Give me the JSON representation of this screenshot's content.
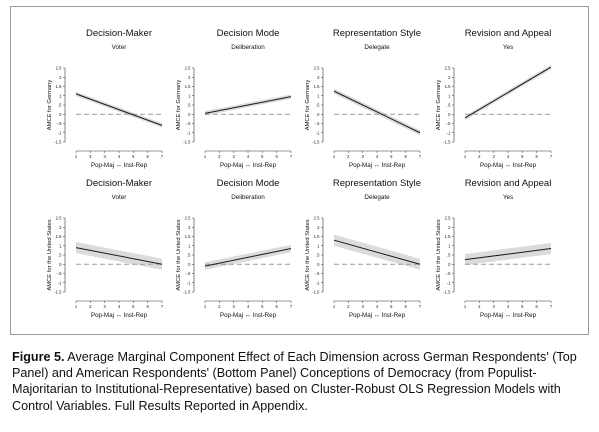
{
  "figure": {
    "caption_label": "Figure 5.",
    "caption_text": " Average Marginal Component Effect of Each Dimension across German Respondents' (Top Panel) and American Respondents' (Bottom Panel) Conceptions of Democracy (from Populist-Majoritarian to Institutional-Representative) based on Cluster-Robust OLS Regression Models with Control Variables. Full Results Reported in Appendix."
  },
  "colors": {
    "line": "#1a1a1a",
    "band": "#cfcfcf",
    "zero": "#9a9a9a",
    "frame": "#9a9a9a"
  },
  "chart_data": [
    {
      "type": "line",
      "title": "Decision-Maker",
      "subtitle": "Voter",
      "xlabel": "Pop-Maj ↔ Inst-Rep",
      "ylabel": "AMCE for Germany",
      "x": [
        1,
        7
      ],
      "y": [
        1.1,
        -0.6
      ],
      "ci_halfwidth": [
        0.12,
        0.12
      ],
      "xlim": [
        1,
        7
      ],
      "ylim": [
        -1.5,
        2.5
      ],
      "xticks": [
        "1",
        "2",
        "3",
        "4",
        "5",
        "6",
        "7"
      ],
      "yticks": [
        "2.5",
        "2",
        "1.5",
        "1",
        ".5",
        "0",
        "-.5",
        "-1",
        "-1.5"
      ],
      "reference_line": 0
    },
    {
      "type": "line",
      "title": "Decision Mode",
      "subtitle": "Deliberation",
      "xlabel": "Pop-Maj ↔ Inst-Rep",
      "ylabel": "AMCE for Germany",
      "x": [
        1,
        7
      ],
      "y": [
        0.05,
        0.95
      ],
      "ci_halfwidth": [
        0.12,
        0.12
      ],
      "xlim": [
        1,
        7
      ],
      "ylim": [
        -1.5,
        2.5
      ],
      "xticks": [
        "1",
        "2",
        "3",
        "4",
        "5",
        "6",
        "7"
      ],
      "yticks": [
        "2.5",
        "2",
        "1.5",
        "1",
        ".5",
        "0",
        "-.5",
        "-1",
        "-1.5"
      ],
      "reference_line": 0
    },
    {
      "type": "line",
      "title": "Representation Style",
      "subtitle": "Delegate",
      "xlabel": "Pop-Maj ↔ Inst-Rep",
      "ylabel": "AMCE for Germany",
      "x": [
        1,
        7
      ],
      "y": [
        1.25,
        -1.0
      ],
      "ci_halfwidth": [
        0.14,
        0.14
      ],
      "xlim": [
        1,
        7
      ],
      "ylim": [
        -1.5,
        2.5
      ],
      "xticks": [
        "1",
        "2",
        "3",
        "4",
        "5",
        "6",
        "7"
      ],
      "yticks": [
        "2.5",
        "2",
        "1.5",
        "1",
        ".5",
        "0",
        "-.5",
        "-1",
        "-1.5"
      ],
      "reference_line": 0
    },
    {
      "type": "line",
      "title": "Revision and Appeal",
      "subtitle": "Yes",
      "xlabel": "Pop-Maj ↔ Inst-Rep",
      "ylabel": "AMCE for Germany",
      "x": [
        1,
        7
      ],
      "y": [
        -0.2,
        2.55
      ],
      "ci_halfwidth": [
        0.12,
        0.12
      ],
      "xlim": [
        1,
        7
      ],
      "ylim": [
        -1.5,
        2.5
      ],
      "xticks": [
        "1",
        "2",
        "3",
        "4",
        "5",
        "6",
        "7"
      ],
      "yticks": [
        "2.5",
        "2",
        "1.5",
        "1",
        ".5",
        "0",
        "-.5",
        "-1",
        "-1.5"
      ],
      "reference_line": 0
    },
    {
      "type": "line",
      "title": "Decision-Maker",
      "subtitle": "Voter",
      "xlabel": "Pop-Maj ↔ Inst-Rep",
      "ylabel": "AMCE for the United States",
      "x": [
        1,
        7
      ],
      "y": [
        0.9,
        0.0
      ],
      "ci_halfwidth": [
        0.3,
        0.3
      ],
      "xlim": [
        1,
        7
      ],
      "ylim": [
        -1.5,
        2.5
      ],
      "xticks": [
        "1",
        "2",
        "3",
        "4",
        "5",
        "6",
        "7"
      ],
      "yticks": [
        "2.5",
        "2",
        "1.5",
        "1",
        ".5",
        "0",
        "-.5",
        "-1",
        "-1.5"
      ],
      "reference_line": 0
    },
    {
      "type": "line",
      "title": "Decision Mode",
      "subtitle": "Deliberation",
      "xlabel": "Pop-Maj ↔ Inst-Rep",
      "ylabel": "AMCE for the United States",
      "x": [
        1,
        7
      ],
      "y": [
        -0.1,
        0.85
      ],
      "ci_halfwidth": [
        0.2,
        0.2
      ],
      "xlim": [
        1,
        7
      ],
      "ylim": [
        -1.5,
        2.5
      ],
      "xticks": [
        "1",
        "2",
        "3",
        "4",
        "5",
        "6",
        "7"
      ],
      "yticks": [
        "2.5",
        "2",
        "1.5",
        "1",
        ".5",
        "0",
        "-.5",
        "-1",
        "-1.5"
      ],
      "reference_line": 0
    },
    {
      "type": "line",
      "title": "Representation Style",
      "subtitle": "Delegate",
      "xlabel": "Pop-Maj ↔ Inst-Rep",
      "ylabel": "AMCE for the United States",
      "x": [
        1,
        7
      ],
      "y": [
        1.3,
        0.0
      ],
      "ci_halfwidth": [
        0.3,
        0.3
      ],
      "xlim": [
        1,
        7
      ],
      "ylim": [
        -1.5,
        2.5
      ],
      "xticks": [
        "1",
        "2",
        "3",
        "4",
        "5",
        "6",
        "7"
      ],
      "yticks": [
        "2.5",
        "2",
        "1.5",
        "1",
        ".5",
        "0",
        "-.5",
        "-1",
        "-1.5"
      ],
      "reference_line": 0
    },
    {
      "type": "line",
      "title": "Revision and Appeal",
      "subtitle": "Yes",
      "xlabel": "Pop-Maj ↔ Inst-Rep",
      "ylabel": "AMCE for the United States",
      "x": [
        1,
        7
      ],
      "y": [
        0.25,
        0.85
      ],
      "ci_halfwidth": [
        0.3,
        0.3
      ],
      "xlim": [
        1,
        7
      ],
      "ylim": [
        -1.5,
        2.5
      ],
      "xticks": [
        "1",
        "2",
        "3",
        "4",
        "5",
        "6",
        "7"
      ],
      "yticks": [
        "2.5",
        "2",
        "1.5",
        "1",
        ".5",
        "0",
        "-.5",
        "-1",
        "-1.5"
      ],
      "reference_line": 0
    }
  ]
}
